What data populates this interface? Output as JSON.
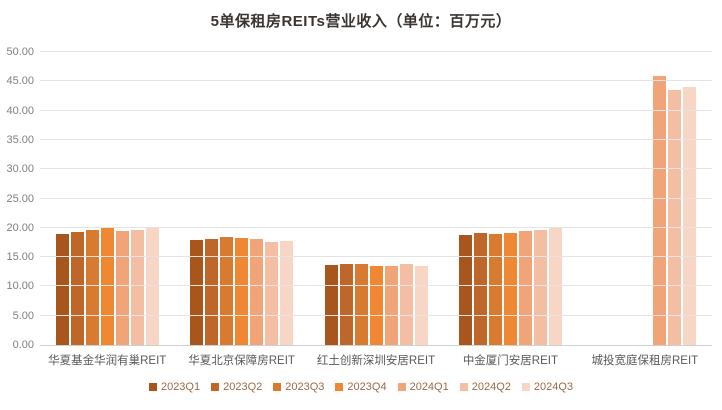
{
  "title": "5单保租房REITs营业收入（单位：百万元）",
  "chart_data": {
    "type": "bar",
    "title": "5单保租房REITs营业收入（单位：百万元）",
    "unit": "百万元",
    "categories": [
      "华夏基金华润有巢REIT",
      "华夏北京保障房REIT",
      "红土创新深圳安居REIT",
      "中金厦门安居REIT",
      "城投宽庭保租房REIT"
    ],
    "series": [
      {
        "name": "2023Q1",
        "color": "#A9561D",
        "values": [
          18.9,
          17.9,
          13.7,
          18.8,
          null
        ]
      },
      {
        "name": "2023Q2",
        "color": "#BF6728",
        "values": [
          19.3,
          18.1,
          13.8,
          19.1,
          null
        ]
      },
      {
        "name": "2023Q3",
        "color": "#D87A30",
        "values": [
          19.6,
          18.4,
          13.8,
          19.0,
          null
        ]
      },
      {
        "name": "2023Q4",
        "color": "#EF8733",
        "values": [
          19.9,
          18.3,
          13.5,
          19.2,
          null
        ]
      },
      {
        "name": "2024Q1",
        "color": "#F0A478",
        "values": [
          19.5,
          18.1,
          13.4,
          19.4,
          45.9
        ]
      },
      {
        "name": "2024Q2",
        "color": "#F4BEA3",
        "values": [
          19.7,
          17.6,
          13.9,
          19.7,
          43.6
        ]
      },
      {
        "name": "2024Q3",
        "color": "#F8D6C6",
        "values": [
          20.1,
          17.8,
          13.4,
          20.0,
          44.1
        ]
      }
    ],
    "ylim": [
      0,
      50
    ],
    "ytick_step": 5,
    "yticks": [
      "50.00",
      "45.00",
      "40.00",
      "35.00",
      "30.00",
      "25.00",
      "20.00",
      "15.00",
      "10.00",
      "5.00",
      "0.00"
    ],
    "grid": true,
    "legend_position": "bottom"
  },
  "colors": {
    "title_text": "#3b3430",
    "y_tick_text": "#7f7f7f",
    "x_tick_text": "#595959",
    "legend_text": "#9a6a48",
    "gridline": "#e4e4e4",
    "axis_line": "#d0d0d0",
    "background": "#ffffff"
  }
}
